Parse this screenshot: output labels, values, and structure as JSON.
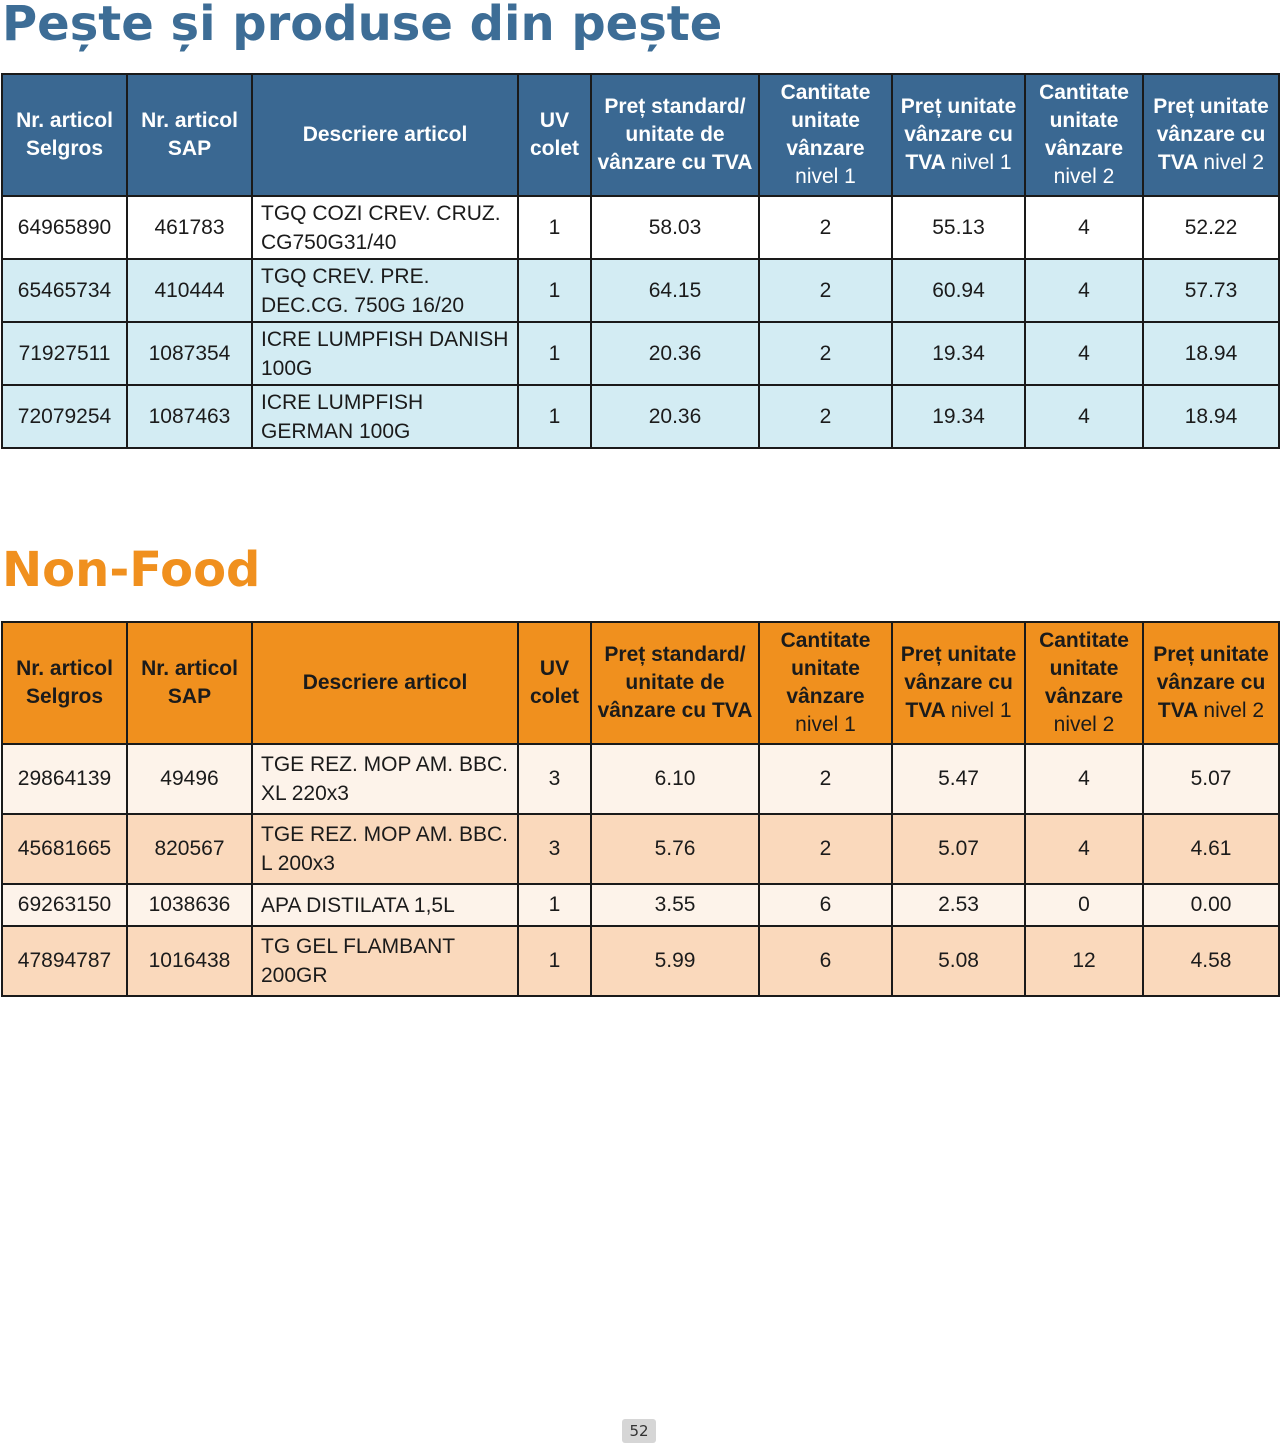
{
  "fish_section": {
    "title": "Pește și produse din pește",
    "headers": [
      {
        "bold": "Nr. articol Selgros",
        "light": ""
      },
      {
        "bold": "Nr. articol SAP",
        "light": ""
      },
      {
        "bold": "Descriere articol",
        "light": ""
      },
      {
        "bold": "UV colet",
        "light": ""
      },
      {
        "bold": "Preț standard/ unitate de vânzare cu TVA",
        "light": ""
      },
      {
        "bold": "Cantitate unitate vânzare",
        "light": "nivel 1"
      },
      {
        "bold": "Preț unitate vânzare cu TVA",
        "light": "nivel 1"
      },
      {
        "bold": "Cantitate unitate vânzare",
        "light": "nivel 2"
      },
      {
        "bold": "Preț unitate vânzare cu TVA",
        "light": "nivel 2"
      }
    ],
    "rows": [
      {
        "selgros": "64965890",
        "sap": "461783",
        "desc": "TGQ COZI CREV. CRUZ. CG750G31/40",
        "uv": "1",
        "std": "58.03",
        "q1": "2",
        "p1": "55.13",
        "q2": "4",
        "p2": "52.22"
      },
      {
        "selgros": "65465734",
        "sap": "410444",
        "desc": "TGQ CREV. PRE. DEC.CG. 750G 16/20",
        "uv": "1",
        "std": "64.15",
        "q1": "2",
        "p1": "60.94",
        "q2": "4",
        "p2": "57.73"
      },
      {
        "selgros": "71927511",
        "sap": "1087354",
        "desc": "ICRE LUMPFISH DANISH 100G",
        "uv": "1",
        "std": "20.36",
        "q1": "2",
        "p1": "19.34",
        "q2": "4",
        "p2": "18.94"
      },
      {
        "selgros": "72079254",
        "sap": "1087463",
        "desc": "ICRE LUMPFISH GERMAN 100G",
        "uv": "1",
        "std": "20.36",
        "q1": "2",
        "p1": "19.34",
        "q2": "4",
        "p2": "18.94"
      }
    ]
  },
  "nonfood_section": {
    "title": "Non-Food",
    "rows": [
      {
        "selgros": "29864139",
        "sap": "49496",
        "desc": "TGE REZ. MOP AM. BBC. XL 220x3",
        "uv": "3",
        "std": "6.10",
        "q1": "2",
        "p1": "5.47",
        "q2": "4",
        "p2": "5.07"
      },
      {
        "selgros": "45681665",
        "sap": "820567",
        "desc": "TGE REZ. MOP AM. BBC. L 200x3",
        "uv": "3",
        "std": "5.76",
        "q1": "2",
        "p1": "5.07",
        "q2": "4",
        "p2": "4.61"
      },
      {
        "selgros": "69263150",
        "sap": "1038636",
        "desc": "APA DISTILATA 1,5L",
        "uv": "1",
        "std": "3.55",
        "q1": "6",
        "p1": "2.53",
        "q2": "0",
        "p2": "0.00"
      },
      {
        "selgros": "47894787",
        "sap": "1016438",
        "desc": "TG GEL FLAMBANT 200GR",
        "uv": "1",
        "std": "5.99",
        "q1": "6",
        "p1": "5.08",
        "q2": "12",
        "p2": "4.58"
      }
    ]
  },
  "page_number": "52",
  "colors": {
    "fish_accent": "#3a6892",
    "fish_row_alt": "#d3ecf3",
    "nonfood_accent": "#f0901e",
    "nonfood_row_light": "#fdf3ea",
    "nonfood_row_alt": "#fad9bc"
  }
}
